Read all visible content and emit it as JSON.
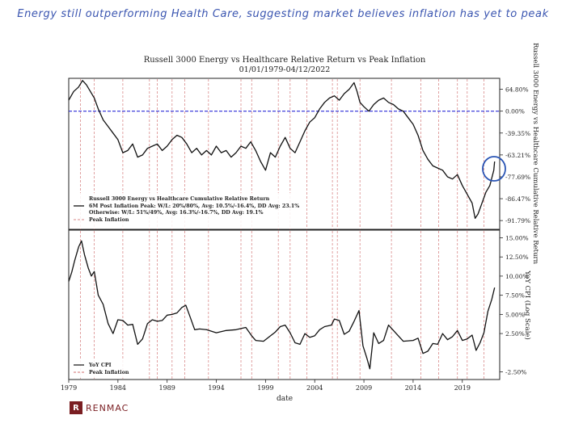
{
  "headline": "Energy still outperforming Health Care, suggesting market believes inflation has yet to peak",
  "logo": "RENMAC",
  "chart_data": [
    {
      "type": "line",
      "title": "Russell 3000 Energy vs Healthcare Relative Return vs Peak Inflation",
      "subtitle": "01/01/1979-04/12/2022",
      "ylabel": "Russell 3000 Energy vs Healthcare Cumulative Relative Return",
      "xlabel": "date",
      "yticks": [
        "64.80%",
        "0.00%",
        "-39.35%",
        "-63.21%",
        "-77.69%",
        "-86.47%",
        "-91.79%"
      ],
      "yticks_log": [
        0.5,
        0,
        -0.5,
        -1.0,
        -1.5,
        -2.0,
        -2.5
      ],
      "ylim_log": [
        -2.7,
        0.75
      ],
      "reference_line": {
        "y_log": 0,
        "style": "dashed",
        "color": "#2b2bd8"
      },
      "legend": [
        "Russell 3000 Energy vs Healthcare Cumulative Relative Return",
        "6M Post Inflation Peak: W/L: 20%/80%, Avg: 10.5%/-16.4%, DD Avg: 23.1%",
        "Otherwise: W/L: 51%/49%, Avg: 16.3%/-16.7%, DD Avg: 19.1%",
        "Peak Inflation"
      ],
      "annotation": "circle",
      "series": [
        {
          "x": [
            1979.0,
            1979.5,
            1980.0,
            1980.4,
            1980.8,
            1981.2,
            1981.6,
            1982.0,
            1982.5,
            1983.0,
            1983.5,
            1984.0,
            1984.5,
            1985.0,
            1985.5,
            1986.0,
            1986.5,
            1987.0,
            1987.5,
            1988.0,
            1988.5,
            1989.0,
            1989.5,
            1990.0,
            1990.5,
            1991.0,
            1991.5,
            1992.0,
            1992.5,
            1993.0,
            1993.5,
            1994.0,
            1994.5,
            1995.0,
            1995.5,
            1996.0,
            1996.5,
            1997.0,
            1997.5,
            1998.0,
            1998.5,
            1999.0,
            1999.5,
            2000.0,
            2000.5,
            2001.0,
            2001.5,
            2002.0,
            2002.5,
            2003.0,
            2003.5,
            2004.0,
            2004.5,
            2005.0,
            2005.5,
            2006.0,
            2006.5,
            2007.0,
            2007.5,
            2008.0,
            2008.3,
            2008.6,
            2009.0,
            2009.5,
            2010.0,
            2010.5,
            2011.0,
            2011.5,
            2012.0,
            2012.5,
            2013.0,
            2013.5,
            2014.0,
            2014.5,
            2015.0,
            2015.5,
            2016.0,
            2016.5,
            2017.0,
            2017.5,
            2018.0,
            2018.5,
            2019.0,
            2019.5,
            2020.0,
            2020.3,
            2020.6,
            2021.0,
            2021.4,
            2021.8,
            2022.2,
            2022.28
          ],
          "y": [
            0.25,
            0.45,
            0.55,
            0.7,
            0.6,
            0.45,
            0.3,
            0.05,
            -0.2,
            -0.35,
            -0.5,
            -0.65,
            -0.95,
            -0.9,
            -0.75,
            -1.05,
            -1.0,
            -0.85,
            -0.8,
            -0.75,
            -0.9,
            -0.8,
            -0.65,
            -0.55,
            -0.6,
            -0.75,
            -0.95,
            -0.85,
            -1.0,
            -0.9,
            -1.0,
            -0.8,
            -0.95,
            -0.9,
            -1.05,
            -0.95,
            -0.8,
            -0.85,
            -0.7,
            -0.9,
            -1.15,
            -1.35,
            -0.95,
            -1.05,
            -0.8,
            -0.6,
            -0.85,
            -0.95,
            -0.7,
            -0.45,
            -0.25,
            -0.15,
            0.05,
            0.2,
            0.3,
            0.35,
            0.25,
            0.4,
            0.5,
            0.65,
            0.45,
            0.2,
            0.1,
            0.0,
            0.15,
            0.25,
            0.3,
            0.2,
            0.15,
            0.05,
            0.0,
            -0.15,
            -0.3,
            -0.55,
            -0.9,
            -1.1,
            -1.25,
            -1.3,
            -1.35,
            -1.5,
            -1.55,
            -1.45,
            -1.7,
            -1.9,
            -2.1,
            -2.45,
            -2.35,
            -2.1,
            -1.85,
            -1.7,
            -1.35,
            -1.15
          ]
        }
      ]
    },
    {
      "type": "line",
      "ylabel": "YoY CPI (Log Scale)",
      "xlabel": "date",
      "yticks": [
        "15.00%",
        "12.50%",
        "10.00%",
        "7.50%",
        "5.00%",
        "2.50%",
        "-2.50%"
      ],
      "yticks_pos": [
        15,
        12.5,
        10,
        7.5,
        5,
        2.5,
        -2.5
      ],
      "ylim_pos": [
        -3.5,
        16
      ],
      "xticks": [
        "1979",
        "1984",
        "1989",
        "1994",
        "1999",
        "2004",
        "2009",
        "2014",
        "2019"
      ],
      "xticks_year": [
        1979,
        1984,
        1989,
        1994,
        1999,
        2004,
        2009,
        2014,
        2019
      ],
      "xlim": [
        1979,
        2022.8
      ],
      "legend": [
        "YoY CPI",
        "Peak Inflation"
      ],
      "peak_inflation_years": [
        1980.2,
        1981.6,
        1984.5,
        1987.2,
        1988.0,
        1989.5,
        1990.8,
        1993.2,
        1996.5,
        1997.6,
        2000.3,
        2001.5,
        2003.2,
        2005.8,
        2006.3,
        2008.6,
        2011.8,
        2014.8,
        2016.6,
        2018.5,
        2019.5,
        2021.2
      ],
      "series": [
        {
          "x": [
            1979.0,
            1979.3,
            1979.6,
            1980.0,
            1980.3,
            1980.6,
            1981.0,
            1981.3,
            1981.6,
            1982.0,
            1982.5,
            1983.0,
            1983.5,
            1984.0,
            1984.5,
            1985.0,
            1985.5,
            1986.0,
            1986.5,
            1987.0,
            1987.5,
            1988.0,
            1988.5,
            1989.0,
            1989.5,
            1990.0,
            1990.5,
            1990.9,
            1991.3,
            1991.8,
            1992.3,
            1993.0,
            1994.0,
            1995.0,
            1996.0,
            1997.0,
            1997.6,
            1998.0,
            1998.8,
            1999.5,
            2000.0,
            2000.5,
            2001.0,
            2001.5,
            2002.0,
            2002.5,
            2003.0,
            2003.5,
            2004.0,
            2004.5,
            2005.0,
            2005.7,
            2006.0,
            2006.5,
            2007.0,
            2007.5,
            2008.0,
            2008.5,
            2008.9,
            2009.3,
            2009.6,
            2010.0,
            2010.5,
            2011.0,
            2011.5,
            2012.0,
            2013.0,
            2014.0,
            2014.5,
            2015.0,
            2015.5,
            2016.0,
            2016.5,
            2017.0,
            2017.5,
            2018.0,
            2018.5,
            2019.0,
            2019.5,
            2020.0,
            2020.4,
            2020.8,
            2021.2,
            2021.6,
            2022.0,
            2022.28
          ],
          "y": [
            9.3,
            10.5,
            12.0,
            13.8,
            14.6,
            12.8,
            11.0,
            10.0,
            10.6,
            7.5,
            6.3,
            3.8,
            2.5,
            4.3,
            4.2,
            3.6,
            3.7,
            1.1,
            1.8,
            3.8,
            4.3,
            4.1,
            4.2,
            4.9,
            5.0,
            5.2,
            5.9,
            6.2,
            4.8,
            3.0,
            3.1,
            3.0,
            2.6,
            2.9,
            3.0,
            3.3,
            2.2,
            1.6,
            1.5,
            2.2,
            2.7,
            3.4,
            3.6,
            2.6,
            1.3,
            1.1,
            2.5,
            2.0,
            2.2,
            3.0,
            3.4,
            3.6,
            4.4,
            4.2,
            2.4,
            2.8,
            4.1,
            5.5,
            0.9,
            -0.7,
            -2.1,
            2.6,
            1.2,
            1.6,
            3.6,
            2.9,
            1.5,
            1.6,
            1.9,
            -0.1,
            0.2,
            1.2,
            1.1,
            2.5,
            1.7,
            2.1,
            2.9,
            1.6,
            1.8,
            2.3,
            0.3,
            1.3,
            2.6,
            5.4,
            7.0,
            8.5
          ]
        }
      ]
    }
  ]
}
